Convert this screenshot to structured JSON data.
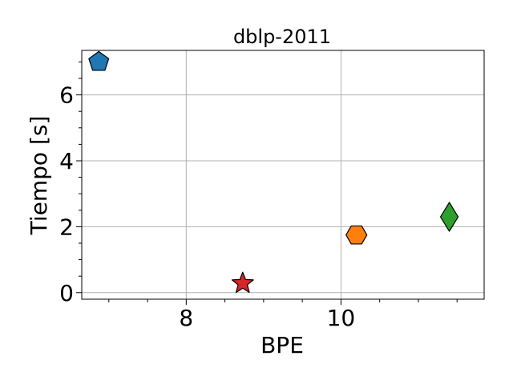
{
  "chart_data": {
    "type": "scatter",
    "title": "dblp-2011",
    "xlabel": "BPE",
    "ylabel": "Tiempo [s]",
    "xlim": [
      6.65,
      11.85
    ],
    "ylim": [
      -0.2,
      7.35
    ],
    "xticks": [
      {
        "value": 8,
        "label": "8"
      },
      {
        "value": 10,
        "label": "10"
      }
    ],
    "yticks": [
      {
        "value": 0,
        "label": "0"
      },
      {
        "value": 2,
        "label": "2"
      },
      {
        "value": 4,
        "label": "4"
      },
      {
        "value": 6,
        "label": "6"
      }
    ],
    "x_minor_ticks": [
      7,
      7.5,
      8.5,
      9,
      9.5,
      10.5,
      11,
      11.5
    ],
    "y_minor_ticks": [
      0.5,
      1,
      1.5,
      2.5,
      3,
      3.5,
      4.5,
      5,
      5.5,
      6.5,
      7
    ],
    "grid": true,
    "points": [
      {
        "x": 6.87,
        "y": 7.0,
        "marker": "pentagon",
        "color": "#1f77b4"
      },
      {
        "x": 8.73,
        "y": 0.28,
        "marker": "star",
        "color": "#d62728"
      },
      {
        "x": 10.2,
        "y": 1.75,
        "marker": "hexagon",
        "color": "#ff7f0e"
      },
      {
        "x": 11.4,
        "y": 2.3,
        "marker": "diamond",
        "color": "#2ca02c"
      }
    ]
  }
}
